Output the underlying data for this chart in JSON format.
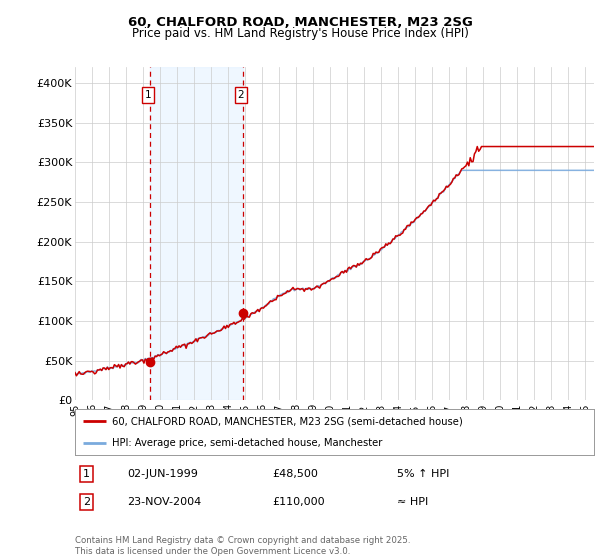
{
  "title_line1": "60, CHALFORD ROAD, MANCHESTER, M23 2SG",
  "title_line2": "Price paid vs. HM Land Registry's House Price Index (HPI)",
  "ylabel_ticks": [
    "£0",
    "£50K",
    "£100K",
    "£150K",
    "£200K",
    "£250K",
    "£300K",
    "£350K",
    "£400K"
  ],
  "ytick_values": [
    0,
    50000,
    100000,
    150000,
    200000,
    250000,
    300000,
    350000,
    400000
  ],
  "ylim": [
    0,
    420000
  ],
  "xlim_start": 1995.0,
  "xlim_end": 2025.5,
  "xticks": [
    1995,
    1996,
    1997,
    1998,
    1999,
    2000,
    2001,
    2002,
    2003,
    2004,
    2005,
    2006,
    2007,
    2008,
    2009,
    2010,
    2011,
    2012,
    2013,
    2014,
    2015,
    2016,
    2017,
    2018,
    2019,
    2020,
    2021,
    2022,
    2023,
    2024,
    2025
  ],
  "xtick_labels": [
    "95",
    "96",
    "97",
    "98",
    "99",
    "00",
    "01",
    "02",
    "03",
    "04",
    "05",
    "06",
    "07",
    "08",
    "09",
    "10",
    "11",
    "12",
    "13",
    "14",
    "15",
    "16",
    "17",
    "18",
    "19",
    "20",
    "21",
    "22",
    "23",
    "24",
    "25"
  ],
  "hpi_color": "#7aaadd",
  "price_color": "#cc0000",
  "marker1_date": 1999.42,
  "marker2_date": 2004.9,
  "marker1_price": 48500,
  "marker2_price": 110000,
  "vline_color": "#cc0000",
  "shaded_color": "#ddeeff",
  "shaded_alpha": 0.45,
  "legend_line1": "60, CHALFORD ROAD, MANCHESTER, M23 2SG (semi-detached house)",
  "legend_line2": "HPI: Average price, semi-detached house, Manchester",
  "annotation1_num": "1",
  "annotation1_date": "02-JUN-1999",
  "annotation1_price": "£48,500",
  "annotation1_hpi": "5% ↑ HPI",
  "annotation2_num": "2",
  "annotation2_date": "23-NOV-2004",
  "annotation2_price": "£110,000",
  "annotation2_hpi": "≈ HPI",
  "footer": "Contains HM Land Registry data © Crown copyright and database right 2025.\nThis data is licensed under the Open Government Licence v3.0.",
  "background_color": "#ffffff",
  "grid_color": "#cccccc"
}
